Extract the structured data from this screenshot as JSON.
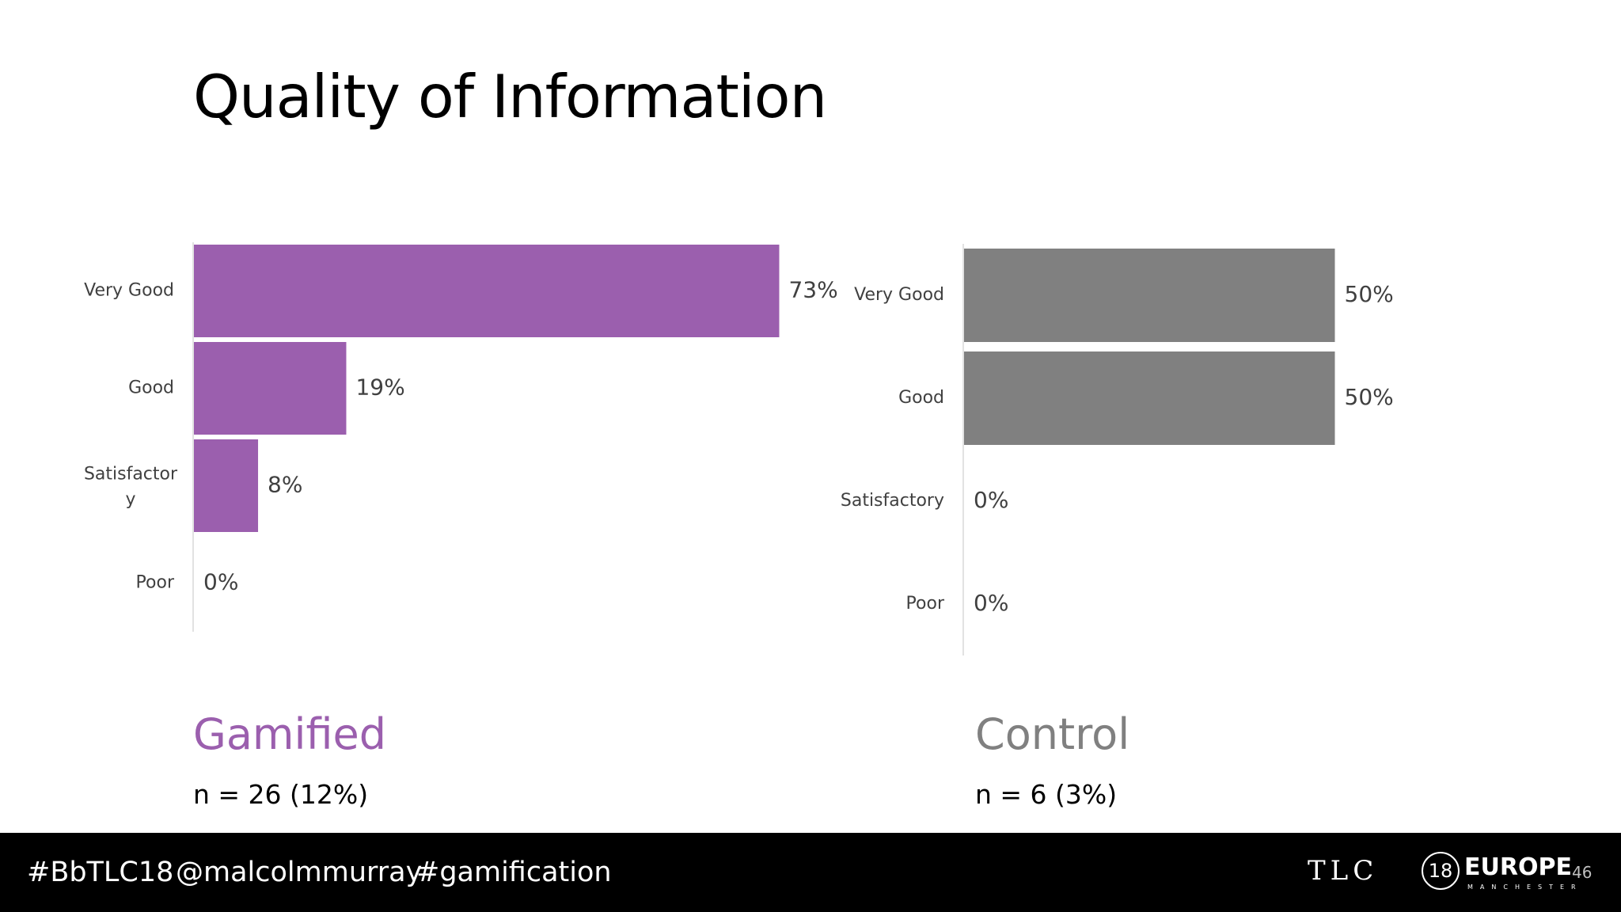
{
  "slide": {
    "title": "Quality of Information"
  },
  "groups": {
    "gamified": {
      "title": "Gamified",
      "n": "n = 26 (12%)",
      "color": "#9B5FAE"
    },
    "control": {
      "title": "Control",
      "n": "n = 6 (3%)",
      "color": "#808080"
    }
  },
  "chart_data": [
    {
      "type": "bar",
      "orientation": "horizontal",
      "categories": [
        "Very Good",
        "Good",
        "Satisfactor\ny",
        "Poor"
      ],
      "values": [
        73,
        19,
        8,
        0
      ],
      "data_labels": [
        "73%",
        "19%",
        "8%",
        "0%"
      ],
      "xlim": [
        0,
        100
      ],
      "color": "#9B5FAE",
      "grid": false,
      "legend": "none"
    },
    {
      "type": "bar",
      "orientation": "horizontal",
      "categories": [
        "Very Good",
        "Good",
        "Satisfactory",
        "Poor"
      ],
      "values": [
        50,
        50,
        0,
        0
      ],
      "data_labels": [
        "50%",
        "50%",
        "0%",
        "0%"
      ],
      "xlim": [
        0,
        100
      ],
      "color": "#808080",
      "grid": false,
      "legend": "none"
    }
  ],
  "footer": {
    "tags": [
      "#BbTLC18",
      "@malcolmmurray",
      "#gamification"
    ],
    "logo": {
      "text": "TLC",
      "number": "18",
      "region": "EUROPE",
      "city": "MANCHESTER"
    },
    "page_number": "46"
  }
}
